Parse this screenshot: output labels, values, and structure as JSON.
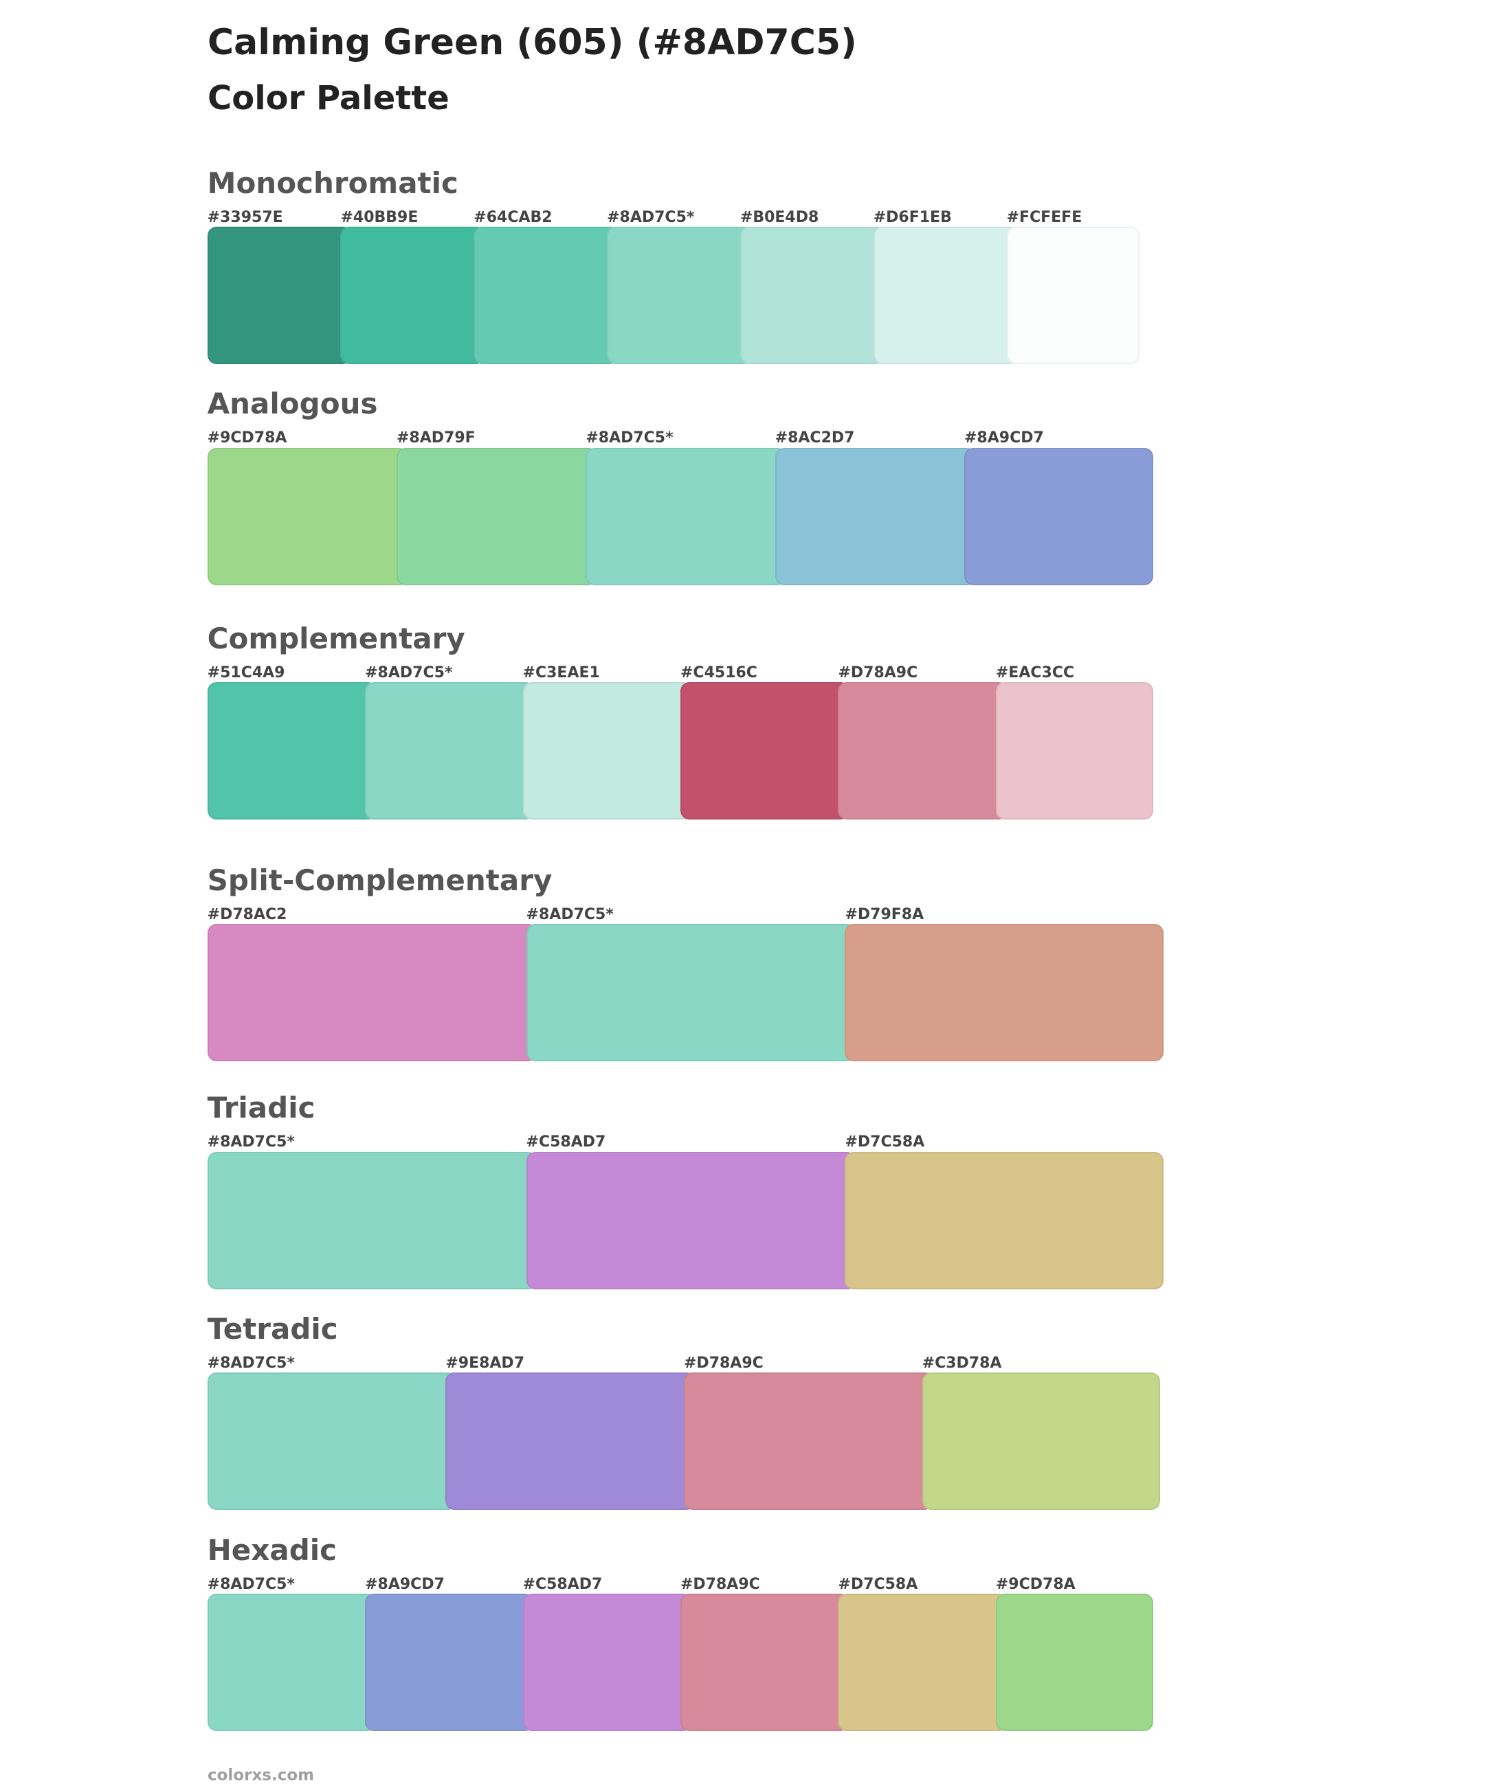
{
  "header": {
    "title": "Calming Green (605) (#8AD7C5)",
    "subtitle": "Color Palette"
  },
  "sections": [
    {
      "name": "Monochromatic",
      "swatches": [
        {
          "label": "#33957E",
          "color": "#33957E"
        },
        {
          "label": "#40BB9E",
          "color": "#40BB9E"
        },
        {
          "label": "#64CAB2",
          "color": "#64CAB2"
        },
        {
          "label": "#8AD7C5*",
          "color": "#8AD7C5"
        },
        {
          "label": "#B0E4D8",
          "color": "#B0E4D8"
        },
        {
          "label": "#D6F1EB",
          "color": "#D6F1EB"
        },
        {
          "label": "#FCFEFE",
          "color": "#FCFEFE"
        }
      ]
    },
    {
      "name": "Analogous",
      "swatches": [
        {
          "label": "#9CD78A",
          "color": "#9CD78A"
        },
        {
          "label": "#8AD79F",
          "color": "#8AD79F"
        },
        {
          "label": "#8AD7C5*",
          "color": "#8AD7C5"
        },
        {
          "label": "#8AC2D7",
          "color": "#8AC2D7"
        },
        {
          "label": "#8A9CD7",
          "color": "#8A9CD7"
        }
      ]
    },
    {
      "name": "Complementary",
      "swatches": [
        {
          "label": "#51C4A9",
          "color": "#51C4A9"
        },
        {
          "label": "#8AD7C5*",
          "color": "#8AD7C5"
        },
        {
          "label": "#C3EAE1",
          "color": "#C3EAE1"
        },
        {
          "label": "#C4516C",
          "color": "#C4516C"
        },
        {
          "label": "#D78A9C",
          "color": "#D78A9C"
        },
        {
          "label": "#EAC3CC",
          "color": "#EAC3CC"
        }
      ]
    },
    {
      "name": "Split-Complementary",
      "swatches": [
        {
          "label": "#D78AC2",
          "color": "#D78AC2"
        },
        {
          "label": "#8AD7C5*",
          "color": "#8AD7C5"
        },
        {
          "label": "#D79F8A",
          "color": "#D79F8A"
        }
      ]
    },
    {
      "name": "Triadic",
      "swatches": [
        {
          "label": "#8AD7C5*",
          "color": "#8AD7C5"
        },
        {
          "label": "#C58AD7",
          "color": "#C58AD7"
        },
        {
          "label": "#D7C58A",
          "color": "#D7C58A"
        }
      ]
    },
    {
      "name": "Tetradic",
      "swatches": [
        {
          "label": "#8AD7C5*",
          "color": "#8AD7C5"
        },
        {
          "label": "#9E8AD7",
          "color": "#9E8AD7"
        },
        {
          "label": "#D78A9C",
          "color": "#D78A9C"
        },
        {
          "label": "#C3D78A",
          "color": "#C3D78A"
        }
      ]
    },
    {
      "name": "Hexadic",
      "swatches": [
        {
          "label": "#8AD7C5*",
          "color": "#8AD7C5"
        },
        {
          "label": "#8A9CD7",
          "color": "#8A9CD7"
        },
        {
          "label": "#C58AD7",
          "color": "#C58AD7"
        },
        {
          "label": "#D78A9C",
          "color": "#D78A9C"
        },
        {
          "label": "#D7C58A",
          "color": "#D7C58A"
        },
        {
          "label": "#9CD78A",
          "color": "#9CD78A"
        }
      ]
    }
  ],
  "footer": "colorxs.com"
}
